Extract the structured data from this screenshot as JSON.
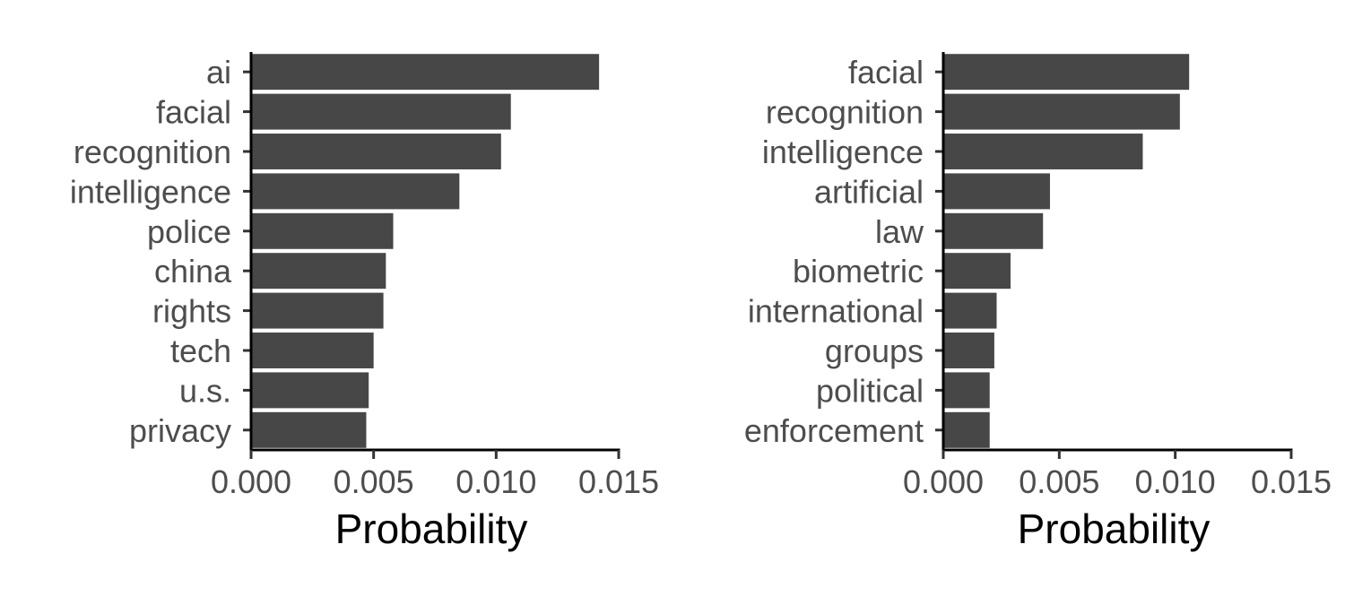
{
  "chart_data": [
    {
      "type": "bar",
      "orientation": "horizontal",
      "categories": [
        "ai",
        "facial",
        "recognition",
        "intelligence",
        "police",
        "china",
        "rights",
        "tech",
        "u.s.",
        "privacy"
      ],
      "values": [
        0.0142,
        0.0106,
        0.0102,
        0.0085,
        0.0058,
        0.0055,
        0.0054,
        0.005,
        0.0048,
        0.0047
      ],
      "xlabel": "Probability",
      "ylabel": "",
      "xlim": [
        0,
        0.015
      ],
      "xticks": [
        "0.000",
        "0.005",
        "0.010",
        "0.015"
      ],
      "bar_color": "#474747",
      "grid": false
    },
    {
      "type": "bar",
      "orientation": "horizontal",
      "categories": [
        "facial",
        "recognition",
        "intelligence",
        "artificial",
        "law",
        "biometric",
        "international",
        "groups",
        "political",
        "enforcement"
      ],
      "values": [
        0.0106,
        0.0102,
        0.0086,
        0.0046,
        0.0043,
        0.0029,
        0.0023,
        0.0022,
        0.002,
        0.002
      ],
      "xlabel": "Probability",
      "ylabel": "",
      "xlim": [
        0,
        0.015
      ],
      "xticks": [
        "0.000",
        "0.005",
        "0.010",
        "0.015"
      ],
      "bar_color": "#474747",
      "grid": false
    }
  ]
}
